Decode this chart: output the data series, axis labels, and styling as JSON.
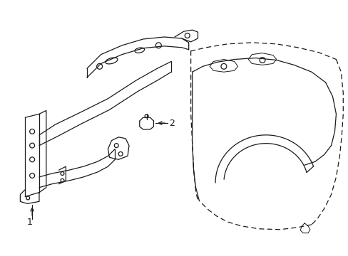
{
  "bg_color": "#ffffff",
  "line_color": "#1a1a1a",
  "label1": "1",
  "label2": "2",
  "figsize": [
    4.89,
    3.6
  ],
  "dpi": 100
}
